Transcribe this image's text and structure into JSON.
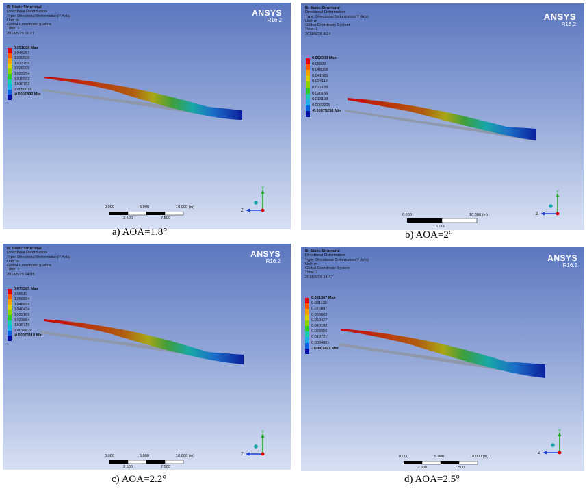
{
  "brand": {
    "name": "ANSYS",
    "version": "R16.2"
  },
  "legend_colors": [
    "#e8000b",
    "#ff5a00",
    "#f7a200",
    "#dbd000",
    "#8fd400",
    "#2ccc2c",
    "#17ccb0",
    "#1ab0e8",
    "#0a62e6",
    "#000fa6"
  ],
  "panels": [
    {
      "header": [
        "B: Static Structural",
        "Directional Deformation",
        "Type: Directional Deformation(Y Axis)",
        "Unit: m",
        "Global Coordinate System",
        "Time: 1",
        "2018/5/29 11:27"
      ],
      "legend": [
        "0.051008 Max",
        "0.045257",
        "0.039506",
        "0.033755",
        "0.028005",
        "0.022254",
        "0.016503",
        "0.010752",
        "0.0050016",
        "-0.0007492 Min"
      ],
      "scale_top": [
        "0.000",
        "5.000",
        "10.000 (m)"
      ],
      "scale_bottom": [
        "2.500",
        "7.500"
      ],
      "caption": "a) AOA=1.8°"
    },
    {
      "header": [
        "B: Static Structural",
        "Directional Deformation",
        "Type: Directional Deformation(Y Axis)",
        "Unit: m",
        "Global Coordinate System",
        "Time: 1",
        "2018/5/28 8:24"
      ],
      "legend": [
        "0.062003 Max",
        "0.05503",
        "0.048058",
        "0.041085",
        "0.034112",
        "0.027139",
        "0.020166",
        "0.013193",
        "0.0062205",
        "-0.00075258 Min"
      ],
      "scale_top": [
        "0.000",
        "10.000 (m)"
      ],
      "scale_bottom": [
        "5.000"
      ],
      "caption": "b) AOA=2°"
    },
    {
      "header": [
        "B: Static Structural",
        "Directional Deformation",
        "Type: Directional Deformation(Y Axis)",
        "Unit: m",
        "Global Coordinate System",
        "Time: 1",
        "2018/5/29 14:05"
      ],
      "legend": [
        "0.073365 Max",
        "0.06513",
        "0.056894",
        "0.048659",
        "0.040424",
        "0.032189",
        "0.023954",
        "0.015719",
        "0.0074839",
        "-0.00075118 Min"
      ],
      "scale_top": [
        "0.000",
        "5.000",
        "10.000 (m)"
      ],
      "scale_bottom": [
        "2.500",
        "7.500"
      ],
      "caption": "c) AOA=2.2°"
    },
    {
      "header": [
        "B: Static Structural",
        "Directional Deformation",
        "Type: Directional Deformation(Y Axis)",
        "Unit: m",
        "Global Coordinate System",
        "Time: 1",
        "2018/5/29 14:47"
      ],
      "legend": [
        "0.091367 Max",
        "0.081132",
        "0.070897",
        "0.060662",
        "0.050427",
        "0.040192",
        "0.029956",
        "0.019721",
        "0.0094861",
        "-0.0007491 Min"
      ],
      "scale_top": [
        "0.000",
        "5.000",
        "10.000 (m)"
      ],
      "scale_bottom": [
        "2.500",
        "7.500"
      ],
      "caption": "d) AOA=2.5°"
    }
  ],
  "triad": {
    "y": "Y",
    "z": "Z"
  }
}
